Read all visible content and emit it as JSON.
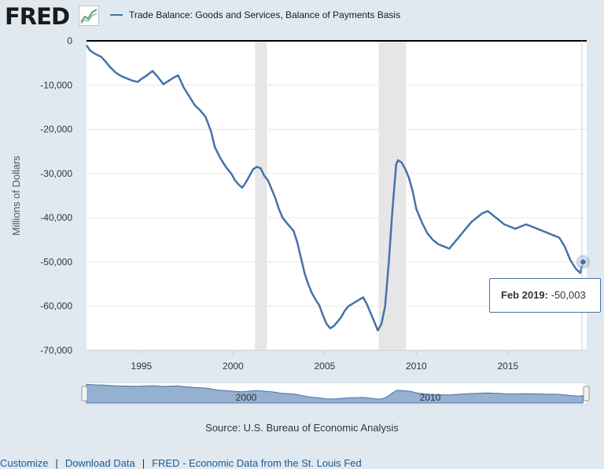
{
  "header": {
    "logo_text": "FRED",
    "series_title": "Trade Balance: Goods and Services, Balance of Payments Basis"
  },
  "colors": {
    "series": "#4572a7",
    "recession": "#e6e6e6",
    "background": "#e1e9f0"
  },
  "chart_data": {
    "type": "line",
    "title": "",
    "xlabel": "",
    "ylabel": "Millions of Dollars",
    "xlim": [
      1992.0,
      2019.3
    ],
    "ylim": [
      -70000,
      0
    ],
    "yticks": [
      0,
      -10000,
      -20000,
      -30000,
      -40000,
      -50000,
      -60000,
      -70000
    ],
    "ytick_labels": [
      "0",
      "-10,000",
      "-20,000",
      "-30,000",
      "-40,000",
      "-50,000",
      "-60,000",
      "-70,000"
    ],
    "xticks": [
      1995,
      2000,
      2005,
      2010,
      2015
    ],
    "xtick_labels": [
      "1995",
      "2000",
      "2005",
      "2010",
      "2015"
    ],
    "grid": true,
    "legend": "top-left",
    "recessions": [
      [
        2001.2,
        2001.85
      ],
      [
        2007.95,
        2009.45
      ]
    ],
    "series": [
      {
        "name": "Trade Balance: Goods and Services, Balance of Payments Basis",
        "x": [
          1992.0,
          1992.2,
          1992.5,
          1992.8,
          1993.0,
          1993.3,
          1993.6,
          1993.9,
          1994.2,
          1994.5,
          1994.8,
          1995.0,
          1995.3,
          1995.6,
          1995.9,
          1996.2,
          1996.5,
          1996.8,
          1997.0,
          1997.3,
          1997.6,
          1997.9,
          1998.2,
          1998.5,
          1998.8,
          1999.0,
          1999.3,
          1999.6,
          1999.9,
          2000.1,
          2000.3,
          2000.5,
          2000.7,
          2000.9,
          2001.1,
          2001.3,
          2001.5,
          2001.7,
          2001.9,
          2002.1,
          2002.3,
          2002.5,
          2002.7,
          2002.9,
          2003.1,
          2003.3,
          2003.5,
          2003.7,
          2003.9,
          2004.1,
          2004.3,
          2004.5,
          2004.7,
          2004.9,
          2005.1,
          2005.3,
          2005.5,
          2005.7,
          2005.9,
          2006.1,
          2006.3,
          2006.5,
          2006.7,
          2006.9,
          2007.1,
          2007.3,
          2007.5,
          2007.7,
          2007.9,
          2008.1,
          2008.3,
          2008.5,
          2008.7,
          2008.9,
          2009.0,
          2009.2,
          2009.4,
          2009.6,
          2009.8,
          2010.0,
          2010.3,
          2010.6,
          2010.9,
          2011.2,
          2011.5,
          2011.8,
          2012.1,
          2012.4,
          2012.7,
          2013.0,
          2013.3,
          2013.6,
          2013.9,
          2014.2,
          2014.5,
          2014.8,
          2015.1,
          2015.4,
          2015.7,
          2016.0,
          2016.3,
          2016.6,
          2016.9,
          2017.2,
          2017.5,
          2017.8,
          2018.1,
          2018.4,
          2018.7,
          2018.95,
          2019.1
        ],
        "values": [
          -1000,
          -2200,
          -3000,
          -3600,
          -4500,
          -6000,
          -7200,
          -8000,
          -8500,
          -9000,
          -9300,
          -8600,
          -7800,
          -6800,
          -8200,
          -9800,
          -9000,
          -8200,
          -7800,
          -10500,
          -12500,
          -14500,
          -15700,
          -17200,
          -20500,
          -24000,
          -26500,
          -28500,
          -30000,
          -31500,
          -32500,
          -33200,
          -32000,
          -30500,
          -29000,
          -28500,
          -28800,
          -30500,
          -31500,
          -33500,
          -35500,
          -38000,
          -40000,
          -41000,
          -42000,
          -43000,
          -45500,
          -49000,
          -52500,
          -55000,
          -57000,
          -58500,
          -59800,
          -62000,
          -64000,
          -65000,
          -64500,
          -63500,
          -62500,
          -61000,
          -60000,
          -59500,
          -59000,
          -58500,
          -58000,
          -59500,
          -61500,
          -63500,
          -65500,
          -64000,
          -60000,
          -50000,
          -38000,
          -28000,
          -27000,
          -27500,
          -29000,
          -31000,
          -34000,
          -38000,
          -41000,
          -43500,
          -45000,
          -46000,
          -46500,
          -47000,
          -45500,
          -44000,
          -42500,
          -41000,
          -40000,
          -39000,
          -38500,
          -39500,
          -40500,
          -41500,
          -42000,
          -42500,
          -42000,
          -41500,
          -42000,
          -42500,
          -43000,
          -43500,
          -44000,
          -44500,
          -46500,
          -49500,
          -51500,
          -52500,
          -50003
        ]
      }
    ],
    "tooltip": {
      "label": "Feb 2019:",
      "value": "-50,003",
      "x": 2019.1,
      "y": -50003
    }
  },
  "source": "Source: U.S. Bureau of Economic Analysis",
  "navigator": {
    "labels": [
      "2000",
      "2010"
    ]
  },
  "footer": {
    "links": [
      "Customize",
      "Download Data",
      "FRED - Economic Data from the St. Louis Fed"
    ],
    "separator": "|"
  }
}
